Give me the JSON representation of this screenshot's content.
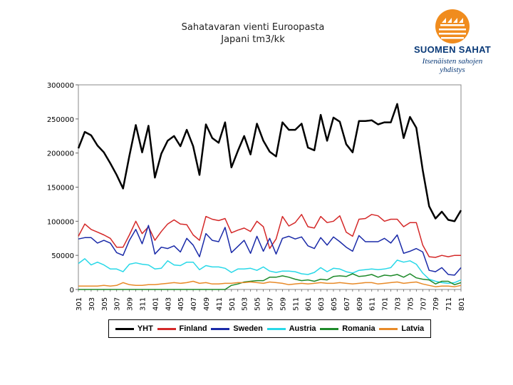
{
  "page_title": {
    "line1": "Sahatavaran vienti Euroopasta",
    "line2": "Japani tm3/kk"
  },
  "logo": {
    "name": "SUOMEN SAHAT",
    "tagline_line1": "Itsenäisten sahojen",
    "tagline_line2": "yhdistys",
    "colors": {
      "sun": "#f08c1e",
      "text": "#0a3a78"
    }
  },
  "chart_data": {
    "type": "line",
    "title": "Sahatavaran vienti Euroopasta Japani tm3/kk",
    "xlabel": "",
    "ylabel": "",
    "ylim": [
      0,
      300000
    ],
    "yticks": [
      0,
      50000,
      100000,
      150000,
      200000,
      250000,
      300000
    ],
    "grid": false,
    "legend_position": "bottom",
    "tick_labels_x": [
      "301",
      "303",
      "305",
      "307",
      "309",
      "311",
      "401",
      "403",
      "405",
      "407",
      "409",
      "411",
      "501",
      "503",
      "505",
      "507",
      "509",
      "511",
      "601",
      "603",
      "605",
      "607",
      "609",
      "611",
      "701",
      "703",
      "705",
      "707",
      "709",
      "711",
      "801"
    ],
    "x": [
      "301",
      "302",
      "303",
      "304",
      "305",
      "306",
      "307",
      "308",
      "309",
      "310",
      "311",
      "312",
      "401",
      "402",
      "403",
      "404",
      "405",
      "406",
      "407",
      "408",
      "409",
      "410",
      "411",
      "412",
      "501",
      "502",
      "503",
      "504",
      "505",
      "506",
      "507",
      "508",
      "509",
      "510",
      "511",
      "512",
      "601",
      "602",
      "603",
      "604",
      "605",
      "606",
      "607",
      "608",
      "609",
      "610",
      "611",
      "612",
      "701",
      "702",
      "703",
      "704",
      "705",
      "706",
      "707",
      "708",
      "709",
      "710",
      "711",
      "712",
      "801"
    ],
    "series": [
      {
        "name": "YHT",
        "color": "#000000",
        "width": 2.5,
        "values": [
          207000,
          231000,
          226000,
          211000,
          201000,
          185000,
          168000,
          148000,
          196000,
          241000,
          201000,
          240000,
          164000,
          199000,
          218000,
          225000,
          210000,
          234000,
          210000,
          168000,
          242000,
          222000,
          215000,
          245000,
          179000,
          203000,
          225000,
          198000,
          243000,
          218000,
          202000,
          195000,
          245000,
          234000,
          234000,
          243000,
          208000,
          204000,
          256000,
          218000,
          252000,
          246000,
          213000,
          201000,
          247000,
          247000,
          248000,
          242000,
          245000,
          245000,
          272000,
          222000,
          253000,
          237000,
          175000,
          122000,
          104000,
          114000,
          102000,
          100000,
          116000
        ]
      },
      {
        "name": "Finland",
        "color": "#d42828",
        "width": 1.5,
        "values": [
          78000,
          96000,
          88000,
          84000,
          80000,
          75000,
          62000,
          62000,
          80000,
          100000,
          82000,
          92000,
          72000,
          85000,
          96000,
          102000,
          96000,
          95000,
          80000,
          72000,
          107000,
          103000,
          101000,
          104000,
          83000,
          87000,
          90000,
          85000,
          100000,
          92000,
          60000,
          74000,
          107000,
          93000,
          98000,
          110000,
          92000,
          90000,
          107000,
          98000,
          100000,
          108000,
          84000,
          78000,
          103000,
          104000,
          110000,
          108000,
          100000,
          103000,
          103000,
          92000,
          98000,
          98000,
          65000,
          48000,
          47000,
          50000,
          48000,
          50000,
          50000
        ]
      },
      {
        "name": "Sweden",
        "color": "#1a2aa8",
        "width": 1.5,
        "values": [
          74000,
          76000,
          76000,
          68000,
          72000,
          68000,
          54000,
          50000,
          72000,
          88000,
          67000,
          94000,
          52000,
          62000,
          60000,
          64000,
          55000,
          75000,
          65000,
          48000,
          82000,
          72000,
          70000,
          91000,
          54000,
          63000,
          72000,
          53000,
          78000,
          56000,
          75000,
          52000,
          75000,
          78000,
          74000,
          77000,
          64000,
          60000,
          76000,
          65000,
          77000,
          70000,
          62000,
          56000,
          79000,
          70000,
          70000,
          70000,
          75000,
          68000,
          80000,
          53000,
          56000,
          60000,
          55000,
          28000,
          26000,
          32000,
          22000,
          21000,
          32000
        ]
      },
      {
        "name": "Austria",
        "color": "#28d8e8",
        "width": 1.5,
        "values": [
          38000,
          45000,
          36000,
          40000,
          36000,
          30000,
          30000,
          26000,
          37000,
          39000,
          37000,
          36000,
          30000,
          31000,
          42000,
          36000,
          35000,
          40000,
          40000,
          29000,
          35000,
          33000,
          33000,
          31000,
          25000,
          30000,
          30000,
          31000,
          28000,
          33000,
          27000,
          25000,
          27000,
          27000,
          26000,
          23000,
          22000,
          25000,
          32000,
          26000,
          31000,
          30000,
          26000,
          24000,
          28000,
          29000,
          30000,
          29000,
          30000,
          32000,
          43000,
          40000,
          42000,
          37000,
          24000,
          15000,
          12000,
          10000,
          9000,
          10000,
          14000
        ]
      },
      {
        "name": "Romania",
        "color": "#1e8a2a",
        "width": 1.5,
        "values": [
          0,
          0,
          0,
          0,
          0,
          0,
          0,
          0,
          0,
          0,
          0,
          0,
          0,
          0,
          0,
          0,
          0,
          0,
          0,
          0,
          0,
          0,
          0,
          0,
          6000,
          8000,
          11000,
          12000,
          13000,
          13000,
          18000,
          18000,
          20000,
          18000,
          15000,
          13000,
          14000,
          12000,
          15000,
          14000,
          19000,
          20000,
          19000,
          23000,
          19000,
          20000,
          22000,
          18000,
          21000,
          20000,
          22000,
          18000,
          23000,
          17000,
          15000,
          14000,
          8000,
          12000,
          12000,
          7000,
          10000
        ]
      },
      {
        "name": "Latvia",
        "color": "#e88a28",
        "width": 1.5,
        "values": [
          5000,
          5000,
          5000,
          5000,
          6000,
          5000,
          6000,
          10000,
          7000,
          6000,
          6000,
          7000,
          7000,
          8000,
          9000,
          10000,
          9000,
          10000,
          12000,
          9000,
          10000,
          8000,
          8000,
          9000,
          9000,
          10000,
          10000,
          11000,
          10000,
          9000,
          11000,
          10000,
          9000,
          7000,
          8000,
          9000,
          8000,
          9000,
          10000,
          9000,
          9000,
          10000,
          9000,
          8000,
          9000,
          10000,
          10000,
          8000,
          9000,
          10000,
          11000,
          9000,
          10000,
          11000,
          8000,
          6000,
          4000,
          5000,
          5000,
          4000,
          6000
        ]
      }
    ]
  }
}
